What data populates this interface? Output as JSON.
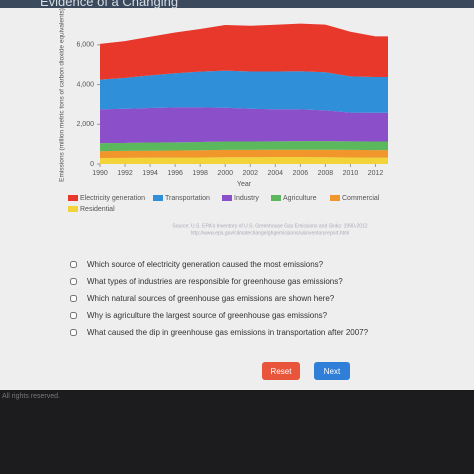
{
  "header": {
    "title": "Evidence of a Changing"
  },
  "chart_data": {
    "type": "stacked-area",
    "y_label": "Emissions (million metric tons of carbon dioxide equivalents)",
    "x_label": "Year",
    "x": [
      1990,
      1992,
      1994,
      1996,
      1998,
      2000,
      2002,
      2004,
      2006,
      2008,
      2010,
      2012
    ],
    "xlim": [
      1990,
      2013
    ],
    "xticks": [
      1990,
      1992,
      1994,
      1996,
      1998,
      2000,
      2002,
      2004,
      2006,
      2008,
      2010,
      2012
    ],
    "ylim": [
      0,
      7000
    ],
    "yticks": [
      0,
      {
        "value": 2000,
        "label": "2,000"
      },
      {
        "value": 4000,
        "label": "4,000"
      },
      {
        "value": 6000,
        "label": "6,000"
      }
    ],
    "series": [
      {
        "name": "Electricity generation",
        "color": "#e8372b",
        "values": [
          1800,
          1850,
          1950,
          2050,
          2150,
          2300,
          2300,
          2350,
          2400,
          2400,
          2250,
          2050
        ]
      },
      {
        "name": "Transportation",
        "color": "#2f8fd8",
        "values": [
          1500,
          1560,
          1640,
          1720,
          1800,
          1870,
          1880,
          1900,
          1920,
          1920,
          1820,
          1800
        ]
      },
      {
        "name": "Industry",
        "color": "#8a4fc9",
        "values": [
          1700,
          1720,
          1740,
          1760,
          1740,
          1700,
          1650,
          1620,
          1600,
          1550,
          1450,
          1450
        ]
      },
      {
        "name": "Agriculture",
        "color": "#5cb85c",
        "values": [
          400,
          400,
          410,
          410,
          420,
          420,
          420,
          420,
          430,
          430,
          430,
          430
        ]
      },
      {
        "name": "Commercial",
        "color": "#f0962a",
        "values": [
          350,
          350,
          350,
          360,
          360,
          370,
          370,
          370,
          370,
          380,
          380,
          380
        ]
      },
      {
        "name": "Residential",
        "color": "#f2d33a",
        "values": [
          300,
          310,
          320,
          320,
          330,
          340,
          340,
          350,
          350,
          340,
          330,
          320
        ]
      }
    ],
    "source": "Source: U.S. EPA's Inventory of U.S. Greenhouse Gas Emissions and Sinks: 1990-2012",
    "source_url": "http://www.epa.gov/climatechange/ghgemissions/usinventoryreport.html"
  },
  "questions": [
    "Which source of electricity generation caused the most emissions?",
    "What types of industries are responsible for greenhouse gas emissions?",
    "Which natural sources of greenhouse gas emissions are shown here?",
    "Why is agriculture the largest source of greenhouse gas emissions?",
    "What caused the dip in greenhouse gas emissions in transportation after 2007?"
  ],
  "buttons": {
    "reset": "Reset",
    "next": "Next"
  },
  "footer": "All rights reserved."
}
